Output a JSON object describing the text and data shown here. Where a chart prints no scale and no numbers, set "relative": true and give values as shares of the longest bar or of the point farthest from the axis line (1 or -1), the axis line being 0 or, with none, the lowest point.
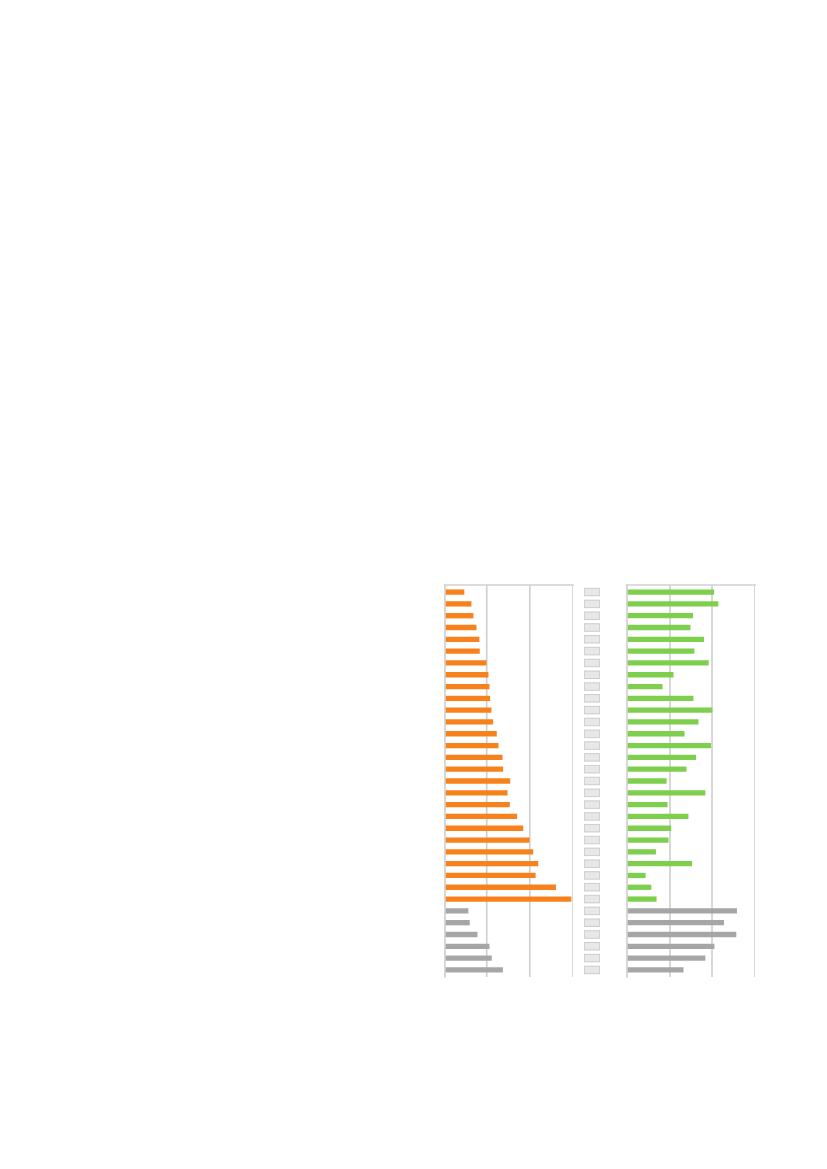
{
  "chart_data": [
    {
      "type": "bar",
      "orientation": "horizontal",
      "relative": true,
      "ref_lines": [
        {
          "axis": "x",
          "value": 0.33,
          "color": "#d0d0d0"
        },
        {
          "axis": "x",
          "value": 0.671,
          "color": "#d0d0d0"
        },
        {
          "axis": "x",
          "value": 1.013,
          "color": "#d0d0d0"
        }
      ],
      "categories": [
        null,
        null,
        null,
        null,
        null,
        null,
        null,
        null,
        null,
        null,
        null,
        null,
        null,
        null,
        null,
        null,
        null,
        null,
        null,
        null,
        null,
        null,
        null,
        null,
        null,
        null,
        null,
        null,
        null,
        null,
        null,
        null,
        null
      ],
      "values": [
        0.153,
        0.209,
        0.225,
        0.249,
        0.272,
        0.275,
        0.328,
        0.344,
        0.352,
        0.357,
        0.368,
        0.381,
        0.41,
        0.423,
        0.455,
        0.46,
        0.516,
        0.495,
        0.513,
        0.571,
        0.619,
        0.669,
        0.698,
        0.738,
        0.717,
        0.878,
        1,
        0.185,
        0.196,
        0.257,
        0.352,
        0.37,
        0.458
      ],
      "colors": [
        "#f7821b",
        "#f7821b",
        "#f7821b",
        "#f7821b",
        "#f7821b",
        "#f7821b",
        "#f7821b",
        "#f7821b",
        "#f7821b",
        "#f7821b",
        "#f7821b",
        "#f7821b",
        "#f7821b",
        "#f7821b",
        "#f7821b",
        "#f7821b",
        "#f7821b",
        "#f7821b",
        "#f7821b",
        "#f7821b",
        "#f7821b",
        "#f7821b",
        "#f7821b",
        "#f7821b",
        "#f7821b",
        "#f7821b",
        "#f7821b",
        "#a6a6a6",
        "#a6a6a6",
        "#a6a6a6",
        "#a6a6a6",
        "#a6a6a6",
        "#a6a6a6"
      ]
    },
    {
      "type": "bar",
      "orientation": "horizontal",
      "relative": true,
      "ref_lines": [
        {
          "axis": "x",
          "value": 0.391,
          "color": "#d0d0d0"
        },
        {
          "axis": "x",
          "value": 0.773,
          "color": "#d0d0d0"
        },
        {
          "axis": "x",
          "value": 1.164,
          "color": "#d0d0d0"
        }
      ],
      "categories": [
        null,
        null,
        null,
        null,
        null,
        null,
        null,
        null,
        null,
        null,
        null,
        null,
        null,
        null,
        null,
        null,
        null,
        null,
        null,
        null,
        null,
        null,
        null,
        null,
        null,
        null,
        null,
        null,
        null,
        null,
        null,
        null,
        null
      ],
      "values": [
        0.792,
        0.831,
        0.601,
        0.577,
        0.701,
        0.613,
        0.743,
        0.423,
        0.323,
        0.604,
        0.776,
        0.65,
        0.523,
        0.764,
        0.628,
        0.541,
        0.36,
        0.713,
        0.369,
        0.559,
        0.402,
        0.378,
        0.263,
        0.592,
        0.169,
        0.221,
        0.269,
        1,
        0.882,
        0.994,
        0.795,
        0.713,
        0.514
      ],
      "colors": [
        "#7fcf4f",
        "#7fcf4f",
        "#7fcf4f",
        "#7fcf4f",
        "#7fcf4f",
        "#7fcf4f",
        "#7fcf4f",
        "#7fcf4f",
        "#7fcf4f",
        "#7fcf4f",
        "#7fcf4f",
        "#7fcf4f",
        "#7fcf4f",
        "#7fcf4f",
        "#7fcf4f",
        "#7fcf4f",
        "#7fcf4f",
        "#7fcf4f",
        "#7fcf4f",
        "#7fcf4f",
        "#7fcf4f",
        "#7fcf4f",
        "#7fcf4f",
        "#7fcf4f",
        "#7fcf4f",
        "#7fcf4f",
        "#7fcf4f",
        "#a6a6a6",
        "#a6a6a6",
        "#a6a6a6",
        "#a6a6a6",
        "#a6a6a6",
        "#a6a6a6"
      ]
    }
  ]
}
